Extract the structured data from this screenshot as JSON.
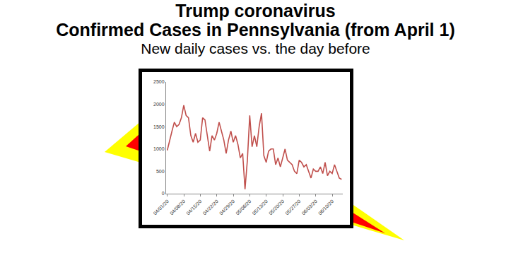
{
  "chart_data": {
    "type": "line",
    "title": "Trump coronavirus\nConfirmed Cases in Pennsylvania (from April 1)",
    "subtitle": "New daily cases vs. the day before",
    "color": "#c0504d",
    "grid": false,
    "categories": [
      "04/01/20",
      null,
      null,
      null,
      null,
      null,
      null,
      "04/08/20",
      null,
      null,
      null,
      null,
      null,
      null,
      "04/15/20",
      null,
      null,
      null,
      null,
      null,
      null,
      "04/22/20",
      null,
      null,
      null,
      null,
      null,
      null,
      "04/29/20",
      null,
      null,
      null,
      null,
      null,
      null,
      "05/06/20",
      null,
      null,
      null,
      null,
      null,
      null,
      "05/13/20",
      null,
      null,
      null,
      null,
      null,
      null,
      "05/20/20",
      null,
      null,
      null,
      null,
      null,
      null,
      "05/27/20",
      null,
      null,
      null,
      null,
      null,
      null,
      "06/03/20",
      null,
      null,
      null,
      null,
      null,
      null,
      "06/10/20",
      null,
      null,
      null,
      null
    ],
    "values": [
      970,
      1200,
      1400,
      1600,
      1500,
      1550,
      1700,
      1980,
      1750,
      1700,
      1300,
      1150,
      1350,
      1150,
      1200,
      1700,
      1650,
      1300,
      950,
      1300,
      1200,
      1350,
      1600,
      1400,
      1200,
      900,
      1200,
      1400,
      1150,
      1300,
      1100,
      800,
      900,
      100,
      750,
      1750,
      1050,
      1300,
      1050,
      1500,
      1800,
      850,
      700,
      950,
      1000,
      1000,
      650,
      800,
      600,
      800,
      1000,
      750,
      700,
      650,
      500,
      450,
      750,
      700,
      600,
      650,
      500,
      350,
      550,
      500,
      500,
      600,
      450,
      700,
      400,
      500,
      450,
      650,
      500,
      350,
      320
    ],
    "ylim": [
      0,
      2500
    ],
    "yticks": [
      0,
      500,
      1000,
      1500,
      2000,
      2500
    ]
  }
}
